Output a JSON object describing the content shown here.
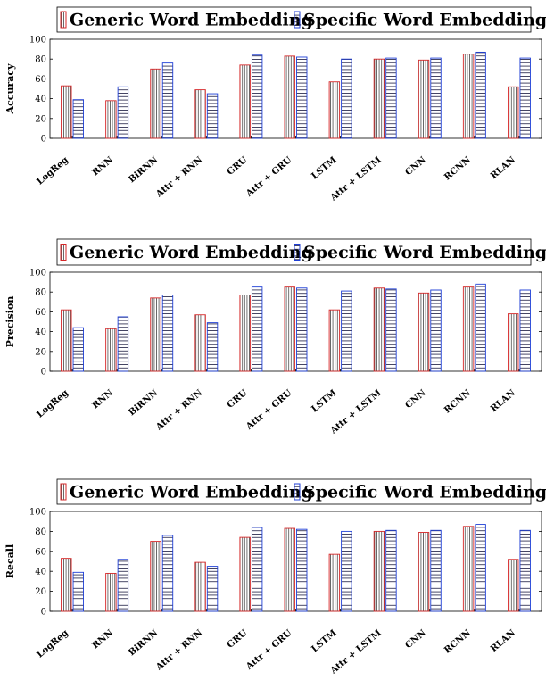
{
  "chart_data": [
    {
      "type": "bar",
      "categories": [
        "LogReg",
        "RNN",
        "BiRNN",
        "Attr + RNN",
        "GRU",
        "Attr + GRU",
        "LSTM",
        "Attr + LSTM",
        "CNN",
        "RCNN",
        "RLAN"
      ],
      "series": [
        {
          "name": "Generic Word Embedding",
          "values": [
            53,
            38,
            70,
            49,
            74,
            83,
            57,
            80,
            79,
            85,
            52
          ],
          "color": "#d62728",
          "pattern": "vertical-lines"
        },
        {
          "name": "Specific Word Embedding",
          "values": [
            39,
            52,
            76,
            45,
            84,
            82,
            80,
            81,
            81,
            87,
            81
          ],
          "color": "#1f3fd6",
          "pattern": "horizontal-lines"
        }
      ],
      "title": "",
      "xlabel": "",
      "ylabel": "Accuracy",
      "ylim": [
        0,
        100
      ],
      "yticks": [
        0,
        20,
        40,
        60,
        80,
        100
      ],
      "grid": false,
      "legend": "top"
    },
    {
      "type": "bar",
      "categories": [
        "LogReg",
        "RNN",
        "BiRNN",
        "Attr + RNN",
        "GRU",
        "Attr + GRU",
        "LSTM",
        "Attr + LSTM",
        "CNN",
        "RCNN",
        "RLAN"
      ],
      "series": [
        {
          "name": "Generic Word Embedding",
          "values": [
            62,
            43,
            74,
            57,
            77,
            85,
            62,
            84,
            79,
            85,
            58
          ],
          "color": "#d62728",
          "pattern": "vertical-lines"
        },
        {
          "name": "Specific Word Embedding",
          "values": [
            44,
            55,
            77,
            49,
            85,
            84,
            81,
            83,
            82,
            88,
            82
          ],
          "color": "#1f3fd6",
          "pattern": "horizontal-lines"
        }
      ],
      "title": "",
      "xlabel": "",
      "ylabel": "Precision",
      "ylim": [
        0,
        100
      ],
      "yticks": [
        0,
        20,
        40,
        60,
        80,
        100
      ],
      "grid": false,
      "legend": "top"
    },
    {
      "type": "bar",
      "categories": [
        "LogReg",
        "RNN",
        "BiRNN",
        "Attr + RNN",
        "GRU",
        "Attr + GRU",
        "LSTM",
        "Attr + LSTM",
        "CNN",
        "RCNN",
        "RLAN"
      ],
      "series": [
        {
          "name": "Generic Word Embedding",
          "values": [
            53,
            38,
            70,
            49,
            74,
            83,
            57,
            80,
            79,
            85,
            52
          ],
          "color": "#d62728",
          "pattern": "vertical-lines"
        },
        {
          "name": "Specific Word Embedding",
          "values": [
            39,
            52,
            76,
            45,
            84,
            82,
            80,
            81,
            81,
            87,
            81
          ],
          "color": "#1f3fd6",
          "pattern": "horizontal-lines"
        }
      ],
      "title": "",
      "xlabel": "",
      "ylabel": "Recall",
      "ylim": [
        0,
        100
      ],
      "yticks": [
        0,
        20,
        40,
        60,
        80,
        100
      ],
      "grid": false,
      "legend": "top"
    }
  ]
}
